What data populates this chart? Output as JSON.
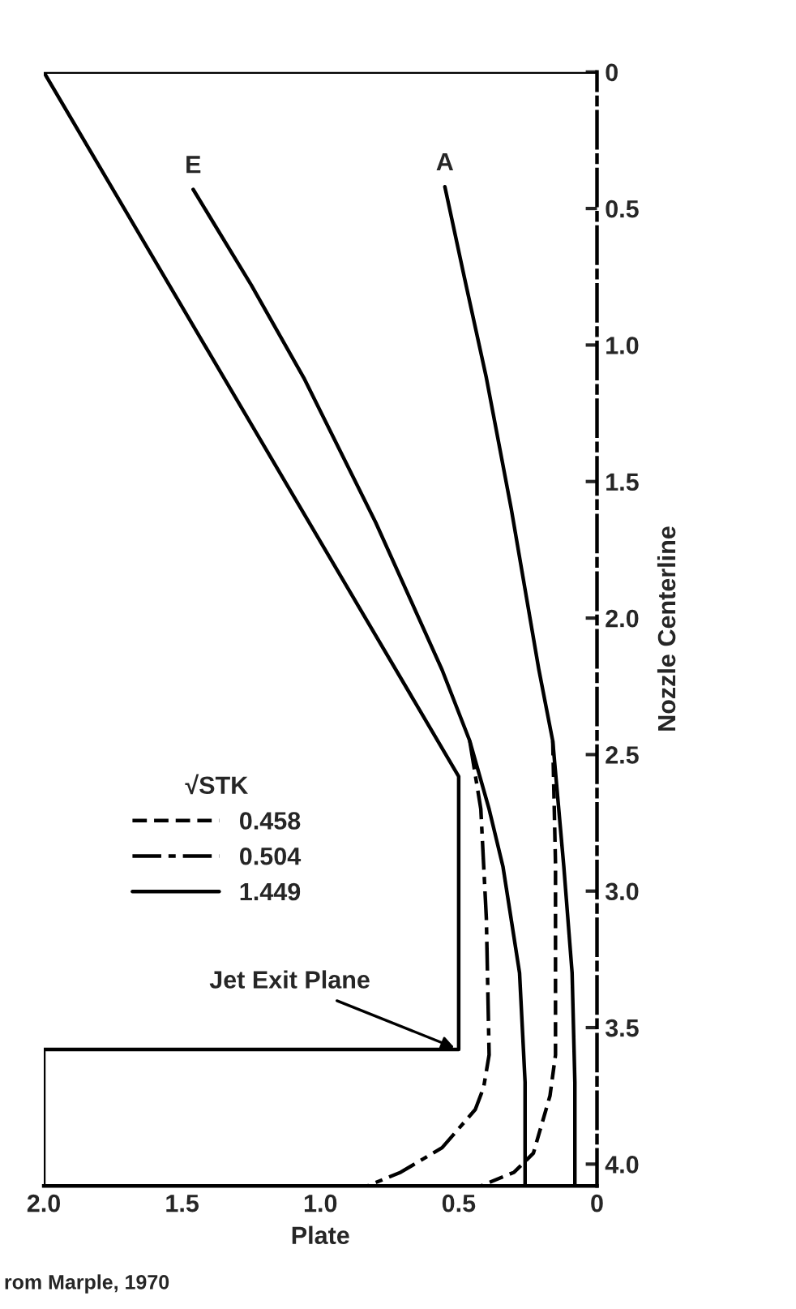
{
  "chart_data": {
    "type": "line",
    "xlabel": "Plate",
    "ylabel": "Nozzle Centerline",
    "legend_title": "√STK",
    "xlim": [
      2.0,
      0
    ],
    "ylim": [
      4.08,
      0
    ],
    "xticks": [
      {
        "value": 2,
        "label": "2.0"
      },
      1.5,
      {
        "value": 1,
        "label": "1.0"
      },
      0.5,
      0
    ],
    "yticks": [
      0,
      0.5,
      {
        "value": 1,
        "label": "1.0"
      },
      1.5,
      {
        "value": 2,
        "label": "2.0"
      },
      2.5,
      {
        "value": 3,
        "label": "3.0"
      },
      3.5,
      {
        "value": 4,
        "label": "4.0"
      }
    ],
    "grid": false,
    "legend": "center left",
    "marker": "none",
    "series": [
      {
        "color": "#000000",
        "line_style": "solid",
        "x": [
          0,
          2.0,
          0.5,
          0.5,
          2.0,
          2.0
        ],
        "values": [
          0,
          0,
          2.58,
          3.58,
          3.58,
          4.08
        ]
      },
      {
        "name": "0.458",
        "color": "#000000",
        "line_style": "dashed",
        "x": [
          0.16,
          0.15,
          0.15,
          0.17,
          0.23,
          0.3,
          0.42
        ],
        "values": [
          2.45,
          2.9,
          3.6,
          3.75,
          3.96,
          4.03,
          4.08
        ]
      },
      {
        "name": "0.504",
        "color": "#000000",
        "line_style": "dashdot",
        "x": [
          0.46,
          0.42,
          0.4,
          0.39,
          0.41,
          0.44,
          0.56,
          0.71,
          0.83
        ],
        "values": [
          2.45,
          2.7,
          3.1,
          3.6,
          3.72,
          3.8,
          3.94,
          4.03,
          4.08
        ]
      },
      {
        "name": "1.449",
        "color": "#000000",
        "line_style": "solid",
        "x": [
          1.46,
          1.25,
          1.06,
          0.8,
          0.56,
          0.46,
          0.39,
          0.34,
          0.28,
          0.26,
          0.26
        ],
        "values": [
          0.43,
          0.78,
          1.12,
          1.65,
          2.19,
          2.45,
          2.7,
          2.91,
          3.3,
          3.7,
          4.08
        ]
      },
      {
        "color": "#000000",
        "line_style": "solid",
        "x": [
          0.55,
          0.48,
          0.4,
          0.31,
          0.21,
          0.16,
          0.12,
          0.09,
          0.08,
          0.08
        ],
        "values": [
          0.42,
          0.75,
          1.12,
          1.6,
          2.19,
          2.45,
          2.91,
          3.3,
          3.7,
          4.08
        ]
      }
    ],
    "annotations": [
      {
        "text": "E",
        "x": 1.46,
        "y": 0.43
      },
      {
        "text": "A",
        "x": 0.55,
        "y": 0.42
      },
      {
        "text": "Jet Exit Plane",
        "x": 0.5,
        "y": 3.58
      },
      "rom Marple, 1970"
    ]
  }
}
